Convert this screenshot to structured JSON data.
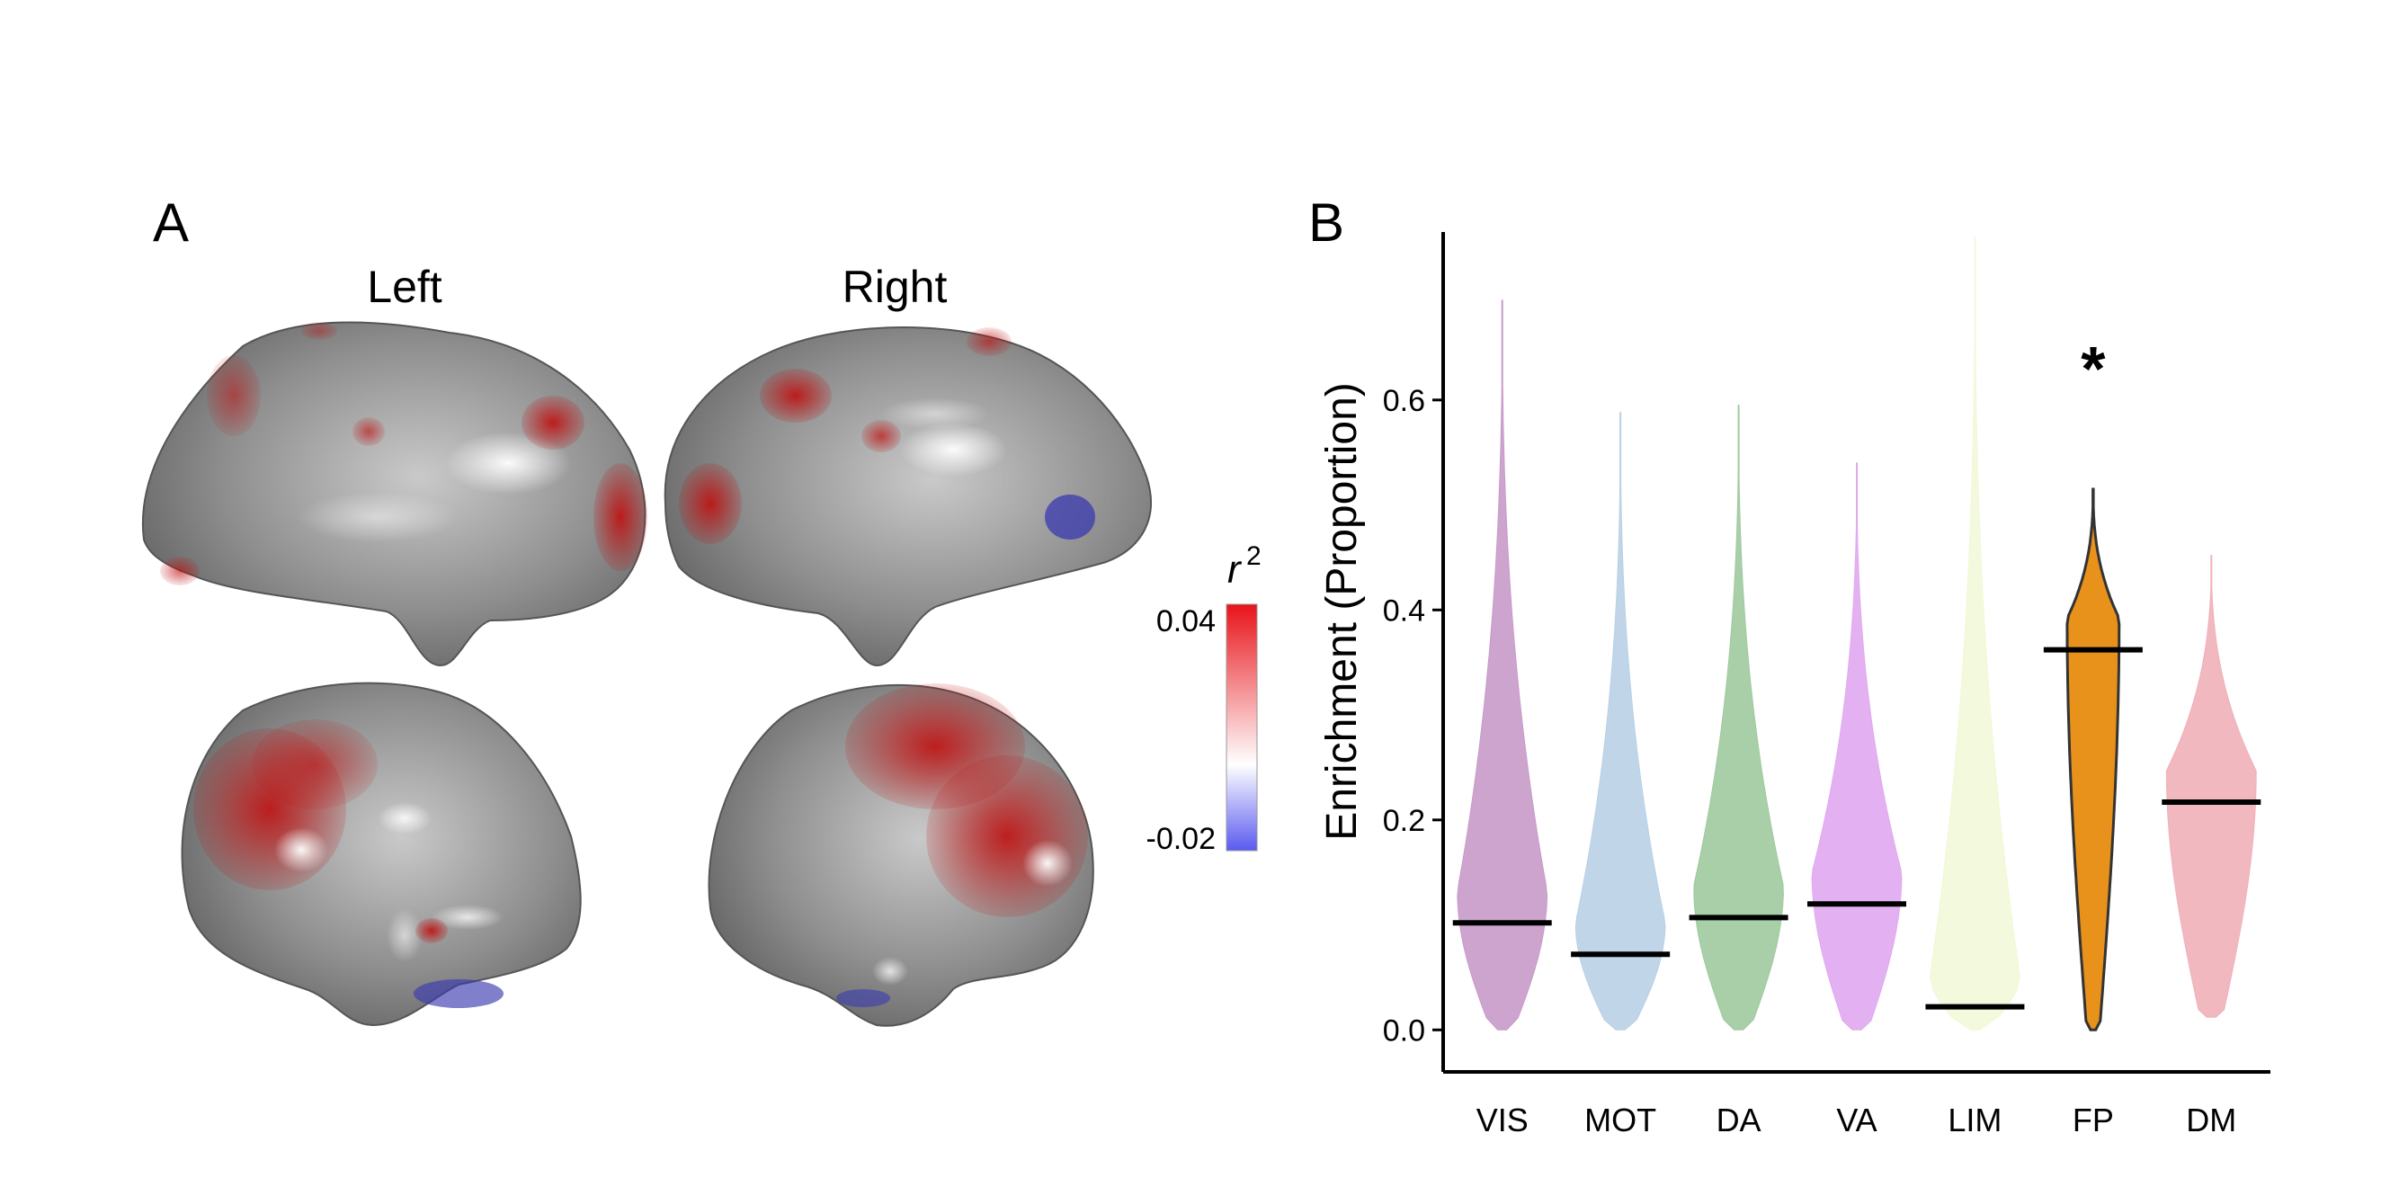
{
  "panel_a": {
    "letter": "A",
    "left_label": "Left",
    "right_label": "Right",
    "colorbar": {
      "title": "r",
      "superscript": "2",
      "max_label": "0.04",
      "min_label": "-0.02",
      "max_color": "#e8141a",
      "mid_color": "#ffffff",
      "min_color": "#5a5af0"
    }
  },
  "panel_b": {
    "letter": "B"
  },
  "chart_data": {
    "type": "violin",
    "title": "",
    "xlabel": "",
    "ylabel": "Enrichment (Proportion)",
    "ylim": [
      -0.04,
      0.76
    ],
    "yticks": [
      "0.0",
      "0.2",
      "0.4",
      "0.6"
    ],
    "categories": [
      "VIS",
      "MOT",
      "DA",
      "VA",
      "LIM",
      "FP",
      "DM"
    ],
    "observed": [
      0.102,
      0.072,
      0.107,
      0.12,
      0.022,
      0.362,
      0.217
    ],
    "max_values": [
      0.695,
      0.588,
      0.595,
      0.54,
      0.755,
      0.515,
      0.452
    ],
    "min_values": [
      0.0,
      0.0,
      0.0,
      0.0,
      0.0,
      0.0,
      0.012
    ],
    "colors": [
      "#c79ac9",
      "#b9d0e6",
      "#9fca9f",
      "#e0a8f0",
      "#f2f8d8",
      "#e8921c",
      "#f0b0b8"
    ],
    "significant": [
      false,
      false,
      false,
      false,
      false,
      true,
      false
    ],
    "significance_marker": "*"
  }
}
